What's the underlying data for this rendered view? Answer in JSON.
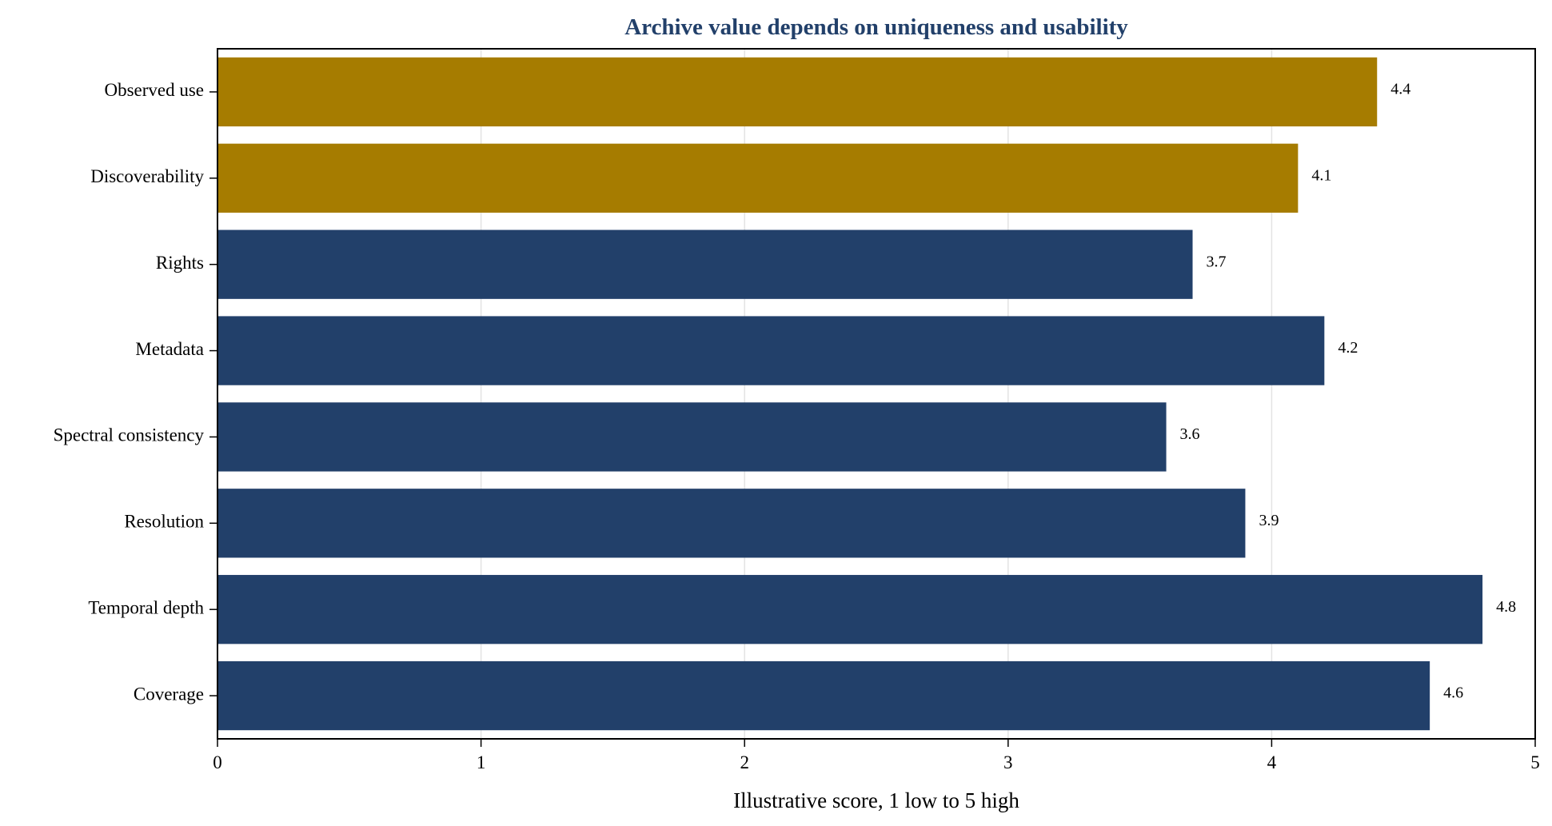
{
  "chart_data": {
    "type": "bar",
    "orientation": "horizontal",
    "title": "Archive value depends on uniqueness and usability",
    "xlabel": "Illustrative score, 1 low to 5 high",
    "ylabel": "",
    "xlim": [
      0,
      5
    ],
    "xticks": [
      0,
      1,
      2,
      3,
      4,
      5
    ],
    "grid": "vertical",
    "categories": [
      "Coverage",
      "Temporal depth",
      "Resolution",
      "Spectral consistency",
      "Metadata",
      "Rights",
      "Discoverability",
      "Observed use"
    ],
    "values": [
      4.6,
      4.8,
      3.9,
      3.6,
      4.2,
      3.7,
      4.1,
      4.4
    ],
    "value_labels": [
      "4.6",
      "4.8",
      "3.9",
      "3.6",
      "4.2",
      "3.7",
      "4.1",
      "4.4"
    ],
    "bar_colors": [
      "#22406a",
      "#22406a",
      "#22406a",
      "#22406a",
      "#22406a",
      "#22406a",
      "#a67c00",
      "#a67c00"
    ],
    "title_color": "#22406a"
  }
}
